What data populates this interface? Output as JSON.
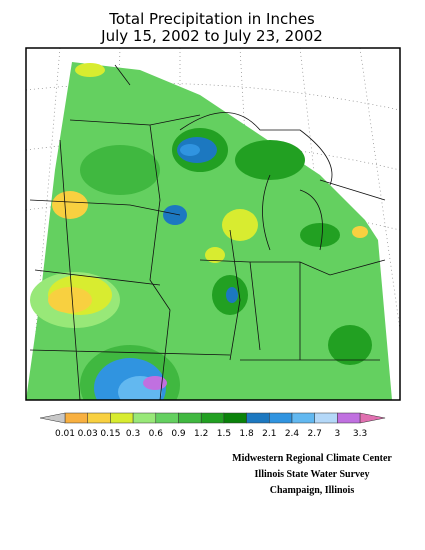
{
  "header": {
    "title": [
      "Total Precipitation in Inches",
      "July 15, 2002 to July 23, 2002"
    ]
  },
  "legend": {
    "labels": [
      "0.01",
      "0.03",
      "0.15",
      "0.3",
      "0.6",
      "0.9",
      "1.2",
      "1.5",
      "1.8",
      "2.1",
      "2.4",
      "2.7",
      "3",
      "3.3"
    ],
    "colors": [
      "#f8b040",
      "#f8d040",
      "#d8ec30",
      "#98e878",
      "#64d060",
      "#40b840",
      "#22a022",
      "#0a820a",
      "#1c78c0",
      "#3094e0",
      "#62b8f0",
      "#b4d8f8",
      "#c070e0"
    ],
    "under_color": "#c8c8c8",
    "over_color": "#e070b0"
  },
  "credits": [
    "Midwestern Regional Climate Center",
    "Illinois State Water Survey",
    "Champaign, Illinois"
  ]
}
